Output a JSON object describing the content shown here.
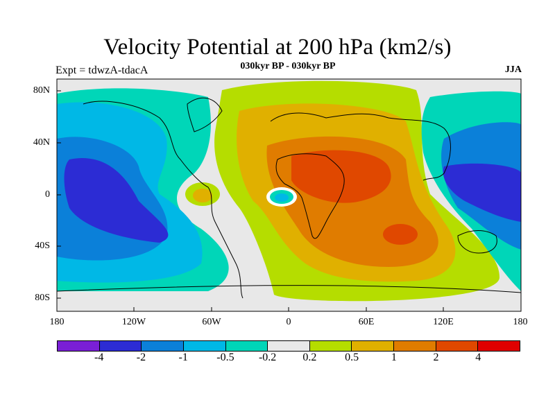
{
  "title": "Velocity Potential at 200 hPa (km2/s)",
  "subtitle": "030kyr BP - 030kyr BP",
  "experiment_label": "Expt = tdwzA-tdacA",
  "season_label": "JJA",
  "lat_labels": [
    "80N",
    "40N",
    "0",
    "40S",
    "80S"
  ],
  "lon_labels": [
    "180",
    "120W",
    "60W",
    "0",
    "60E",
    "120E",
    "180"
  ],
  "colorbar": {
    "colors": [
      "#7a1fd6",
      "#2c2cd4",
      "#0b80d9",
      "#00b8e6",
      "#00d6b8",
      "#e8e8e8",
      "#b5dd00",
      "#e0b000",
      "#e07c00",
      "#e04800",
      "#e00000"
    ],
    "labels": [
      "-4",
      "-2",
      "-1",
      "-0.5",
      "-0.2",
      "0.2",
      "0.5",
      "1",
      "2",
      "4"
    ]
  }
}
